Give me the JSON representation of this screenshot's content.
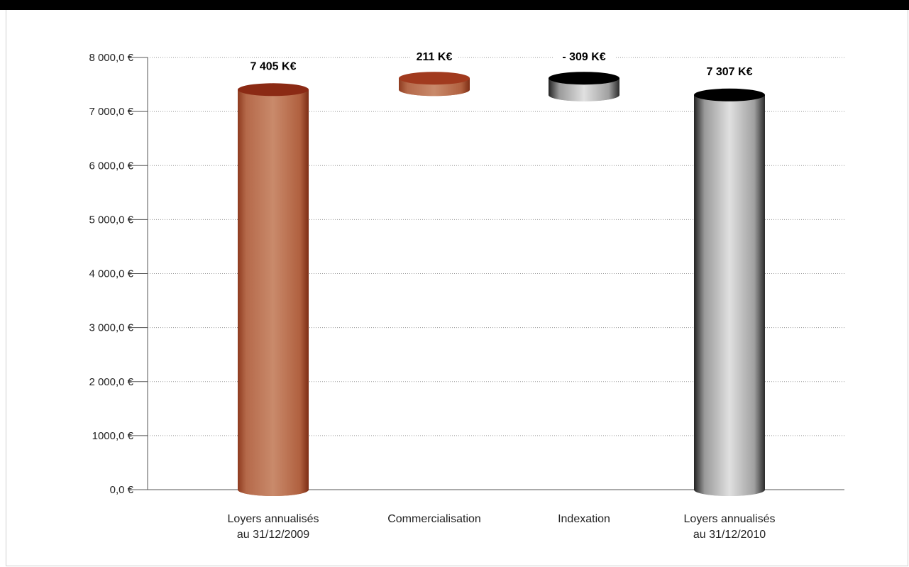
{
  "chart_data": {
    "type": "bar",
    "subtype": "waterfall-3d-cylinder",
    "title": "",
    "xlabel": "",
    "ylabel": "",
    "ylim": [
      0,
      8000
    ],
    "yticks": [
      0,
      1000,
      2000,
      3000,
      4000,
      5000,
      6000,
      7000,
      8000
    ],
    "ytick_labels": [
      "0,0 €",
      "1000,0 €",
      "2 000,0 €",
      "3 000,0 €",
      "4 000,0 €",
      "5 000,0 €",
      "6 000,0 €",
      "7 000,0 €",
      "8 000,0 €"
    ],
    "grid": true,
    "categories": [
      [
        "Loyers annualisés",
        "au 31/12/2009"
      ],
      [
        "Commercialisation"
      ],
      [
        "Indexation"
      ],
      [
        "Loyers annualisés",
        "au 31/12/2010"
      ]
    ],
    "bars": [
      {
        "base": 0,
        "value": 7405,
        "label": "7 405 K€",
        "color": "#b5704f",
        "top_color": "#8b2a14"
      },
      {
        "base": 7405,
        "value": 211,
        "label": "211 K€",
        "color": "#c0714f",
        "top_color": "#a13a1e"
      },
      {
        "base": 7307,
        "value": 309,
        "label": "- 309 K€",
        "color": "#8a8a8a",
        "top_color": "#000000"
      },
      {
        "base": 0,
        "value": 7307,
        "label": "7 307 K€",
        "color": "#bdbdbd",
        "top_color": "#000000"
      }
    ]
  }
}
